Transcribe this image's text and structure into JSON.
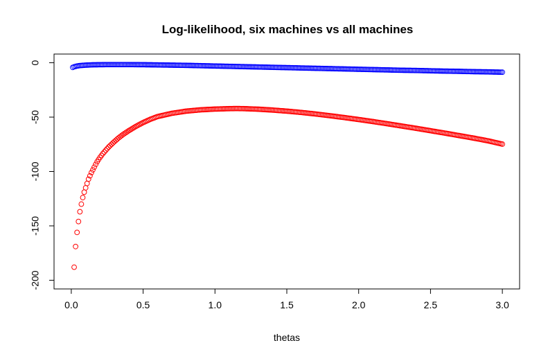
{
  "chart_data": {
    "type": "scatter",
    "title": "Log-likelihood, six machines vs all machines",
    "xlabel": "thetas",
    "ylabel": "",
    "xlim": [
      -0.12,
      3.12
    ],
    "ylim": [
      -208,
      8
    ],
    "x_ticks": [
      {
        "value": 0.0,
        "label": "0.0"
      },
      {
        "value": 0.5,
        "label": "0.5"
      },
      {
        "value": 1.0,
        "label": "1.0"
      },
      {
        "value": 1.5,
        "label": "1.5"
      },
      {
        "value": 2.0,
        "label": "2.0"
      },
      {
        "value": 2.5,
        "label": "2.5"
      },
      {
        "value": 3.0,
        "label": "3.0"
      }
    ],
    "y_ticks": [
      {
        "value": 0,
        "label": "0"
      },
      {
        "value": -50,
        "label": "-50"
      },
      {
        "value": -100,
        "label": "-100"
      },
      {
        "value": -150,
        "label": "-150"
      },
      {
        "value": -200,
        "label": "-200"
      }
    ],
    "grid": false,
    "marker": "open-circle",
    "series": [
      {
        "color": "#0000ff",
        "x": [
          0.01,
          0.02,
          0.04,
          0.06,
          0.08,
          0.1,
          0.12,
          0.15,
          0.2,
          0.25,
          0.3,
          0.4,
          0.5,
          0.6,
          0.7,
          0.8,
          0.9,
          1.0,
          1.1,
          1.2,
          1.3,
          1.4,
          1.5,
          1.6,
          1.7,
          1.8,
          1.9,
          2.0,
          2.1,
          2.2,
          2.3,
          2.4,
          2.5,
          2.6,
          2.7,
          2.8,
          2.9,
          3.0
        ],
        "y": [
          -4.3,
          -3.7,
          -3.0,
          -2.6,
          -2.4,
          -2.2,
          -2.1,
          -1.9,
          -1.8,
          -1.7,
          -1.7,
          -1.7,
          -1.8,
          -2.0,
          -2.2,
          -2.4,
          -2.7,
          -3.0,
          -3.3,
          -3.6,
          -3.9,
          -4.2,
          -4.5,
          -4.8,
          -5.1,
          -5.4,
          -5.7,
          -6.0,
          -6.3,
          -6.6,
          -6.9,
          -7.1,
          -7.4,
          -7.7,
          -7.9,
          -8.2,
          -8.4,
          -8.7
        ]
      },
      {
        "color": "#ff0000",
        "x": [
          0.02,
          0.03,
          0.04,
          0.05,
          0.06,
          0.07,
          0.08,
          0.09,
          0.1,
          0.11,
          0.12,
          0.13,
          0.14,
          0.15,
          0.16,
          0.17,
          0.18,
          0.19,
          0.2,
          0.22,
          0.24,
          0.26,
          0.28,
          0.3,
          0.33,
          0.36,
          0.4,
          0.45,
          0.5,
          0.55,
          0.6,
          0.7,
          0.8,
          0.9,
          1.0,
          1.1,
          1.15,
          1.2,
          1.3,
          1.4,
          1.5,
          1.6,
          1.7,
          1.8,
          1.9,
          2.0,
          2.1,
          2.2,
          2.3,
          2.4,
          2.5,
          2.6,
          2.7,
          2.8,
          2.9,
          3.0
        ],
        "y": [
          -188,
          -169,
          -156,
          -146,
          -137,
          -130,
          -124,
          -119,
          -115,
          -111,
          -107,
          -104,
          -101,
          -98.5,
          -96,
          -93.5,
          -91,
          -89,
          -87,
          -83.5,
          -80.5,
          -77.5,
          -75,
          -72.5,
          -69,
          -66,
          -62.5,
          -58.5,
          -55,
          -52,
          -49.5,
          -46.5,
          -44.5,
          -43.3,
          -42.6,
          -42.2,
          -42.1,
          -42.2,
          -42.7,
          -43.5,
          -44.5,
          -45.7,
          -47.1,
          -48.7,
          -50.4,
          -52.2,
          -54.1,
          -56.1,
          -58.2,
          -60.3,
          -62.5,
          -64.7,
          -67.0,
          -69.3,
          -71.8,
          -74.8
        ]
      }
    ]
  }
}
